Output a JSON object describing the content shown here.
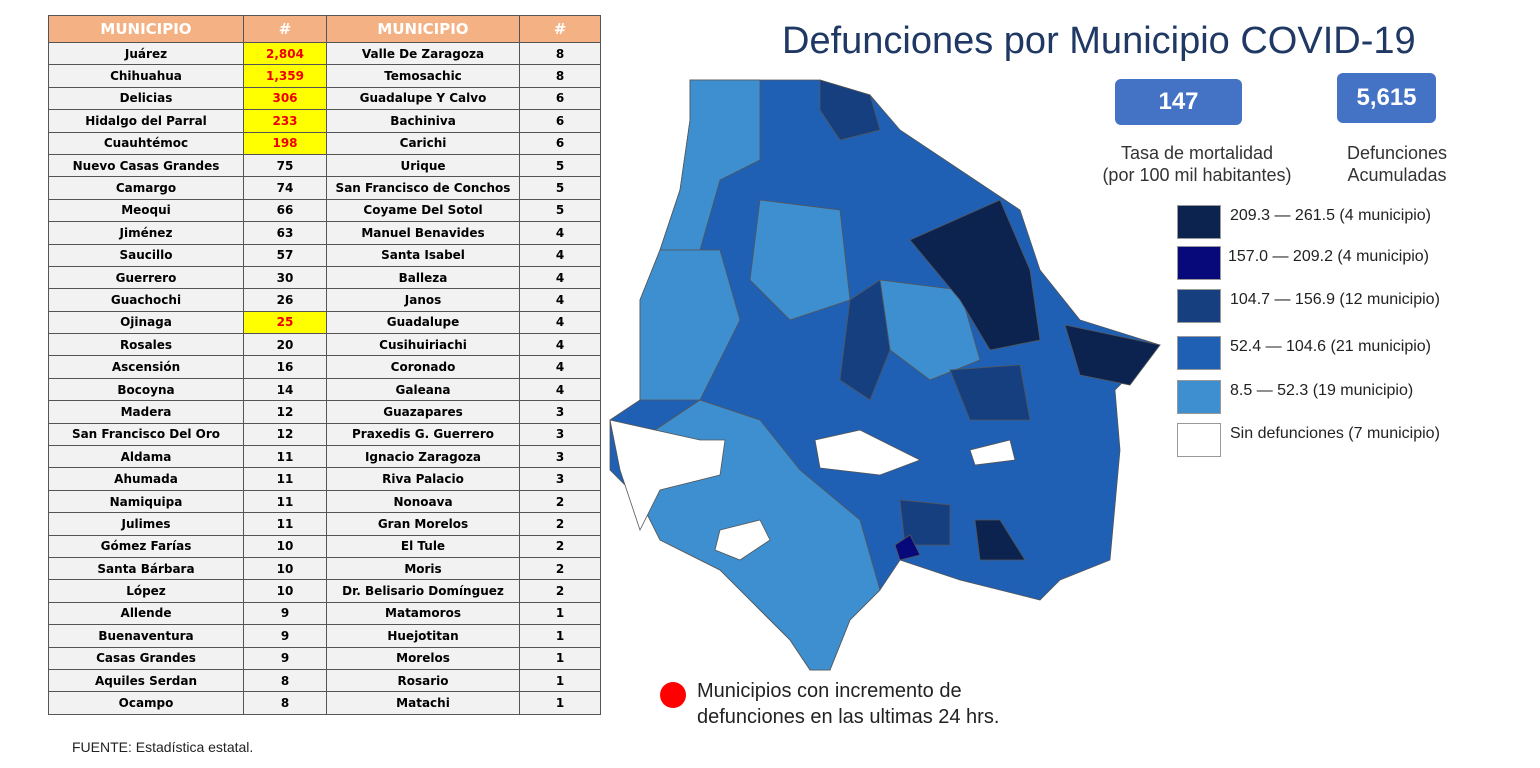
{
  "table": {
    "header": [
      "MUNICIPIO",
      "#",
      "MUNICIPIO",
      "#"
    ],
    "rows": [
      [
        "Juárez",
        "2,804",
        "Valle De Zaragoza",
        "8"
      ],
      [
        "Chihuahua",
        "1,359",
        "Temosachic",
        "8"
      ],
      [
        "Delicias",
        "306",
        "Guadalupe Y Calvo",
        "6"
      ],
      [
        "Hidalgo del Parral",
        "233",
        "Bachiniva",
        "6"
      ],
      [
        "Cuauhtémoc",
        "198",
        "Carichi",
        "6"
      ],
      [
        "Nuevo Casas Grandes",
        "75",
        "Urique",
        "5"
      ],
      [
        "Camargo",
        "74",
        "San Francisco de Conchos",
        "5"
      ],
      [
        "Meoqui",
        "66",
        "Coyame Del Sotol",
        "5"
      ],
      [
        "Jiménez",
        "63",
        "Manuel Benavides",
        "4"
      ],
      [
        "Saucillo",
        "57",
        "Santa Isabel",
        "4"
      ],
      [
        "Guerrero",
        "30",
        "Balleza",
        "4"
      ],
      [
        "Guachochi",
        "26",
        "Janos",
        "4"
      ],
      [
        "Ojinaga",
        "25",
        "Guadalupe",
        "4"
      ],
      [
        "Rosales",
        "20",
        "Cusihuiriachi",
        "4"
      ],
      [
        "Ascensión",
        "16",
        "Coronado",
        "4"
      ],
      [
        "Bocoyna",
        "14",
        "Galeana",
        "4"
      ],
      [
        "Madera",
        "12",
        "Guazapares",
        "3"
      ],
      [
        "San Francisco Del Oro",
        "12",
        "Praxedis G. Guerrero",
        "3"
      ],
      [
        "Aldama",
        "11",
        "Ignacio Zaragoza",
        "3"
      ],
      [
        "Ahumada",
        "11",
        "Riva Palacio",
        "3"
      ],
      [
        "Namiquipa",
        "11",
        "Nonoava",
        "2"
      ],
      [
        "Julimes",
        "11",
        "Gran Morelos",
        "2"
      ],
      [
        "Gómez Farías",
        "10",
        "El Tule",
        "2"
      ],
      [
        "Santa Bárbara",
        "10",
        "Moris",
        "2"
      ],
      [
        "López",
        "10",
        "Dr. Belisario Domínguez",
        "2"
      ],
      [
        "Allende",
        "9",
        "Matamoros",
        "1"
      ],
      [
        "Buenaventura",
        "9",
        "Huejotitan",
        "1"
      ],
      [
        "Casas Grandes",
        "9",
        "Morelos",
        "1"
      ],
      [
        "Aquiles Serdan",
        "8",
        "Rosario",
        "1"
      ],
      [
        "Ocampo",
        "8",
        "Matachi",
        "1"
      ]
    ],
    "highlighted_rows": [
      0,
      1,
      2,
      3,
      4,
      12
    ],
    "highlight_color": "#ffff00"
  },
  "source": "FUENTE:  Estadística estatal.",
  "title": "Defunciones por Municipio COVID-19",
  "kpis": [
    {
      "value": "147",
      "label_1": "Tasa de mortalidad",
      "label_2": "(por 100 mil habitantes)"
    },
    {
      "value": "5,615",
      "label_1": "Defunciones",
      "label_2": "Acumuladas"
    }
  ],
  "legend": [
    {
      "label": "209.3 — 261.5 (4 municipio)",
      "color": "#0c2350"
    },
    {
      "label": "157.0 — 209.2 (4 municipio)",
      "color": "#07097a"
    },
    {
      "label": "104.7 — 156.9 (12 municipio)",
      "color": "#163f80"
    },
    {
      "label": "52.4 — 104.6 (21 municipio)",
      "color": "#1f60b4"
    },
    {
      "label": "8.5 — 52.3 (19 municipio)",
      "color": "#3d8fcf"
    },
    {
      "label": "Sin defunciones (7 municipio)",
      "color": "#ffffff"
    }
  ],
  "note": {
    "line_1": "Municipios con incremento de",
    "line_2": "defunciones en las ultimas 24 hrs."
  }
}
